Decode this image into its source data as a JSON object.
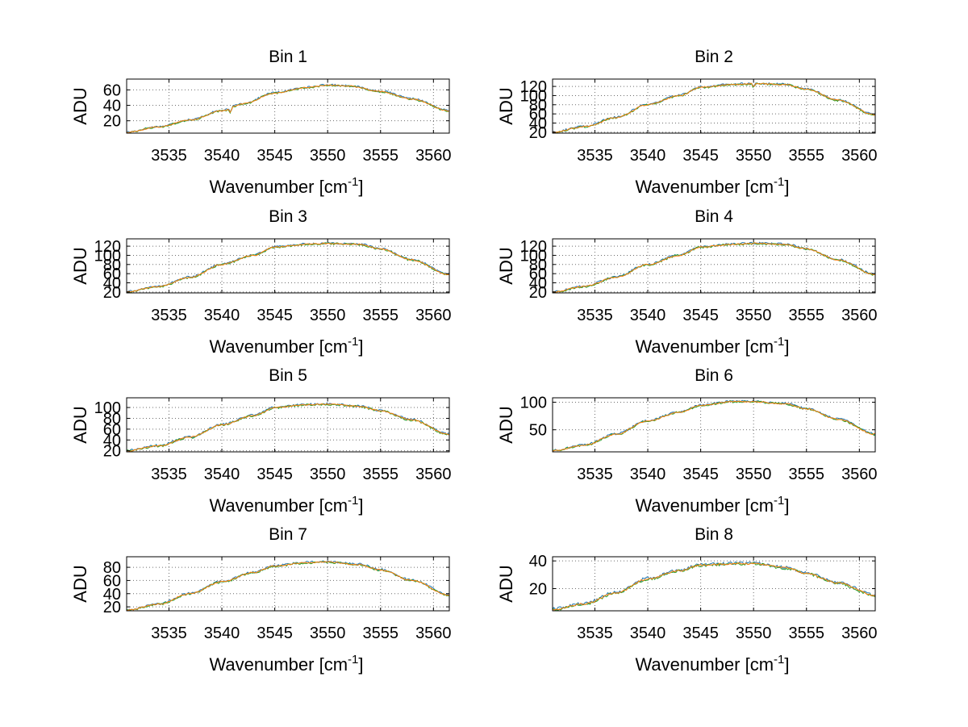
{
  "chart_data": [
    {
      "type": "line",
      "title": "Bin 1",
      "xlabel": "Wavenumber [cm",
      "xlabel_sup": "-1",
      "xlabel_close": "]",
      "ylabel": "ADU",
      "xlim": [
        3531,
        3561.5
      ],
      "ylim": [
        4,
        74
      ],
      "xticks": [
        3535,
        3540,
        3545,
        3550,
        3555,
        3560
      ],
      "yticks": [
        20,
        40,
        60
      ],
      "grid": true,
      "series_colors": [
        "#1f77b4",
        "#2ca02c",
        "#ff7f0e"
      ],
      "anchors": {
        "x": [
          3531,
          3534,
          3537,
          3540,
          3542,
          3545,
          3548,
          3550,
          3552,
          3555,
          3558,
          3561.5
        ],
        "y": [
          5,
          12,
          21,
          33,
          42,
          56,
          63,
          66,
          65,
          58,
          48,
          33
        ]
      },
      "noise": 1.2,
      "dips": [
        {
          "x": 3540.8,
          "d": 6
        }
      ]
    },
    {
      "type": "line",
      "title": "Bin 2",
      "xlabel": "Wavenumber [cm",
      "xlabel_sup": "-1",
      "xlabel_close": "]",
      "ylabel": "ADU",
      "xlim": [
        3531,
        3561.5
      ],
      "ylim": [
        18,
        136
      ],
      "xticks": [
        3535,
        3540,
        3545,
        3550,
        3555,
        3560
      ],
      "yticks": [
        20,
        40,
        60,
        80,
        100,
        120
      ],
      "grid": true,
      "series_colors": [
        "#1f77b4",
        "#2ca02c",
        "#ff7f0e"
      ],
      "anchors": {
        "x": [
          3531,
          3534,
          3537,
          3540,
          3543,
          3545,
          3548,
          3550,
          3553,
          3555,
          3558,
          3561.5
        ],
        "y": [
          20,
          32,
          52,
          80,
          100,
          118,
          124,
          126,
          124,
          114,
          90,
          58
        ]
      },
      "noise": 2.2,
      "dips": [
        {
          "x": 3550,
          "d": 8
        }
      ]
    },
    {
      "type": "line",
      "title": "Bin 3",
      "xlabel": "Wavenumber [cm",
      "xlabel_sup": "-1",
      "xlabel_close": "]",
      "ylabel": "ADU",
      "xlim": [
        3531,
        3561.5
      ],
      "ylim": [
        18,
        136
      ],
      "xticks": [
        3535,
        3540,
        3545,
        3550,
        3555,
        3560
      ],
      "yticks": [
        20,
        40,
        60,
        80,
        100,
        120
      ],
      "grid": true,
      "series_colors": [
        "#1f77b4",
        "#2ca02c",
        "#ff7f0e"
      ],
      "anchors": {
        "x": [
          3531,
          3534,
          3537,
          3540,
          3543,
          3545,
          3548,
          3550,
          3553,
          3555,
          3558,
          3561.5
        ],
        "y": [
          20,
          32,
          52,
          80,
          100,
          118,
          124,
          126,
          124,
          114,
          90,
          58
        ]
      },
      "noise": 2.2,
      "dips": []
    },
    {
      "type": "line",
      "title": "Bin 4",
      "xlabel": "Wavenumber [cm",
      "xlabel_sup": "-1",
      "xlabel_close": "]",
      "ylabel": "ADU",
      "xlim": [
        3531,
        3561.5
      ],
      "ylim": [
        18,
        136
      ],
      "xticks": [
        3535,
        3540,
        3545,
        3550,
        3555,
        3560
      ],
      "yticks": [
        20,
        40,
        60,
        80,
        100,
        120
      ],
      "grid": true,
      "series_colors": [
        "#1f77b4",
        "#2ca02c",
        "#ff7f0e"
      ],
      "anchors": {
        "x": [
          3531,
          3534,
          3537,
          3540,
          3543,
          3545,
          3548,
          3550,
          3553,
          3555,
          3558,
          3561.5
        ],
        "y": [
          20,
          32,
          52,
          80,
          100,
          118,
          124,
          126,
          124,
          114,
          90,
          58
        ]
      },
      "noise": 2.2,
      "dips": []
    },
    {
      "type": "line",
      "title": "Bin 5",
      "xlabel": "Wavenumber [cm",
      "xlabel_sup": "-1",
      "xlabel_close": "]",
      "ylabel": "ADU",
      "xlim": [
        3531,
        3561.5
      ],
      "ylim": [
        18,
        118
      ],
      "xticks": [
        3535,
        3540,
        3545,
        3550,
        3555,
        3560
      ],
      "yticks": [
        20,
        40,
        60,
        80,
        100
      ],
      "grid": true,
      "series_colors": [
        "#1f77b4",
        "#2ca02c",
        "#ff7f0e"
      ],
      "anchors": {
        "x": [
          3531,
          3534,
          3537,
          3540,
          3543,
          3545,
          3548,
          3550,
          3553,
          3555,
          3558,
          3561.5
        ],
        "y": [
          20,
          29,
          45,
          68,
          85,
          100,
          105,
          106,
          102,
          94,
          77,
          50
        ]
      },
      "noise": 2,
      "dips": []
    },
    {
      "type": "line",
      "title": "Bin 6",
      "xlabel": "Wavenumber [cm",
      "xlabel_sup": "-1",
      "xlabel_close": "]",
      "ylabel": "ADU",
      "xlim": [
        3531,
        3561.5
      ],
      "ylim": [
        10,
        108
      ],
      "xticks": [
        3535,
        3540,
        3545,
        3550,
        3555,
        3560
      ],
      "yticks": [
        50,
        100
      ],
      "grid": true,
      "series_colors": [
        "#1f77b4",
        "#2ca02c",
        "#ff7f0e"
      ],
      "anchors": {
        "x": [
          3531,
          3534,
          3537,
          3540,
          3543,
          3545,
          3548,
          3550,
          3553,
          3555,
          3558,
          3561.5
        ],
        "y": [
          12,
          22,
          42,
          66,
          82,
          94,
          101,
          101,
          97,
          88,
          69,
          42
        ]
      },
      "noise": 1.8,
      "dips": []
    },
    {
      "type": "line",
      "title": "Bin 7",
      "xlabel": "Wavenumber [cm",
      "xlabel_sup": "-1",
      "xlabel_close": "]",
      "ylabel": "ADU",
      "xlim": [
        3531,
        3561.5
      ],
      "ylim": [
        14,
        96
      ],
      "xticks": [
        3535,
        3540,
        3545,
        3550,
        3555,
        3560
      ],
      "yticks": [
        20,
        40,
        60,
        80
      ],
      "grid": true,
      "series_colors": [
        "#1f77b4",
        "#2ca02c",
        "#ff7f0e"
      ],
      "anchors": {
        "x": [
          3531,
          3534,
          3537,
          3540,
          3543,
          3545,
          3548,
          3550,
          3553,
          3555,
          3558,
          3561.5
        ],
        "y": [
          15,
          24,
          40,
          58,
          72,
          82,
          87,
          88,
          84,
          76,
          60,
          38
        ]
      },
      "noise": 1.6,
      "dips": []
    },
    {
      "type": "line",
      "title": "Bin 8",
      "xlabel": "Wavenumber [cm",
      "xlabel_sup": "-1",
      "xlabel_close": "]",
      "ylabel": "ADU",
      "xlim": [
        3531,
        3561.5
      ],
      "ylim": [
        4,
        43
      ],
      "xticks": [
        3535,
        3540,
        3545,
        3550,
        3555,
        3560
      ],
      "yticks": [
        20,
        40
      ],
      "grid": true,
      "series_colors": [
        "#1f77b4",
        "#2ca02c",
        "#ff7f0e"
      ],
      "anchors": {
        "x": [
          3531,
          3534,
          3537,
          3540,
          3543,
          3545,
          3548,
          3550,
          3553,
          3555,
          3558,
          3561.5
        ],
        "y": [
          5,
          9,
          17,
          27,
          33,
          37,
          38,
          38,
          35,
          31,
          24,
          15
        ]
      },
      "noise": 1,
      "dips": []
    }
  ]
}
